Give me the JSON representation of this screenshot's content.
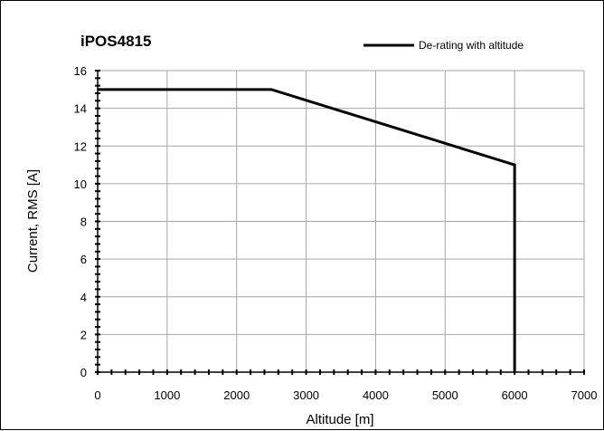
{
  "chart_data": {
    "type": "line",
    "title": "iPOS4815",
    "xlabel": "Altitude [m]",
    "ylabel": "Current, RMS [A]",
    "xlim": [
      0,
      7000
    ],
    "ylim": [
      0,
      16
    ],
    "x_ticks": [
      0,
      1000,
      2000,
      3000,
      4000,
      5000,
      6000,
      7000
    ],
    "y_ticks": [
      0,
      2,
      4,
      6,
      8,
      10,
      12,
      14,
      16
    ],
    "x_tick_labels": [
      "0",
      "1000",
      "2000",
      "3000",
      "4000",
      "5000",
      "6000",
      "7000"
    ],
    "y_tick_labels": [
      "0",
      "2",
      "4",
      "6",
      "8",
      "10",
      "12",
      "14",
      "16"
    ],
    "grid": true,
    "legend_position": "top-right",
    "series": [
      {
        "name": "De-rating with altitude",
        "color": "#000000",
        "x": [
          0,
          2500,
          6000,
          6000
        ],
        "y": [
          15,
          15,
          11,
          0
        ]
      }
    ]
  }
}
